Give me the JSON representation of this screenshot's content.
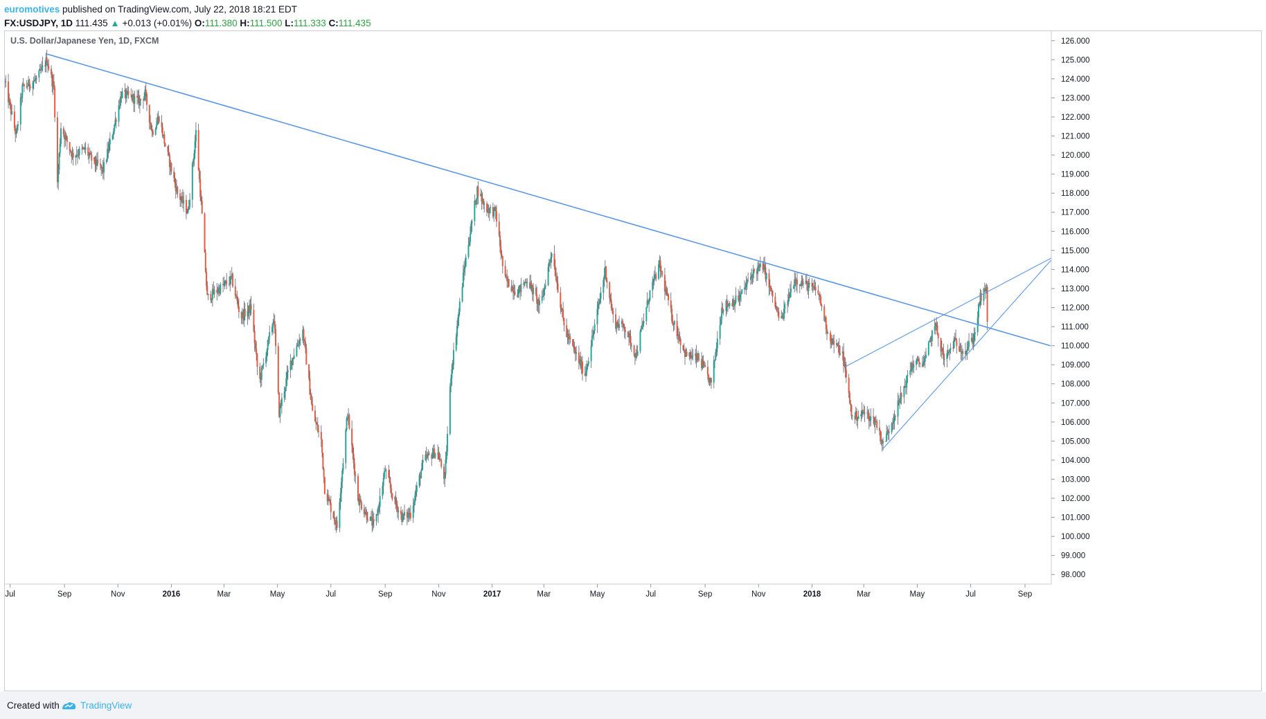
{
  "header": {
    "author": "euromotives",
    "published_text": "published on TradingView.com, July 22, 2018 18:21 EDT",
    "symbol": "FX:USDJPY, 1D",
    "price": "111.435",
    "change": "+0.013 (+0.01%)",
    "open_label": "O:",
    "open_value": "111.380",
    "high_label": "H:",
    "high_value": "111.500",
    "low_label": "L:",
    "low_value": "111.333",
    "close_label": "C:",
    "close_value": "111.435"
  },
  "chart_title": "U.S. Dollar/Japanese Yen, 1D, FXCM",
  "footer": {
    "created_with": "Created with",
    "brand": "TradingView"
  },
  "colors": {
    "up": "#26a69a",
    "down": "#e45c44",
    "trendline": "#5b97e3",
    "author": "#3bb3e4",
    "ohlc_value": "#2ea043"
  },
  "chart_data": {
    "type": "candlestick",
    "title": "U.S. Dollar/Japanese Yen, 1D, FXCM",
    "x_tick_labels": [
      "Jul",
      "Sep",
      "Nov",
      "2016",
      "Mar",
      "May",
      "Jul",
      "Sep",
      "Nov",
      "2017",
      "Mar",
      "May",
      "Jul",
      "Sep",
      "Nov",
      "2018",
      "Mar",
      "May",
      "Jul",
      "Sep"
    ],
    "x_tick_dates": [
      "2015-07-01",
      "2015-09-01",
      "2015-11-01",
      "2016-01-01",
      "2016-03-01",
      "2016-05-01",
      "2016-07-01",
      "2016-09-01",
      "2016-11-01",
      "2017-01-01",
      "2017-03-01",
      "2017-05-01",
      "2017-07-01",
      "2017-09-01",
      "2017-11-01",
      "2018-01-01",
      "2018-03-01",
      "2018-05-01",
      "2018-07-01",
      "2018-09-01"
    ],
    "y_tick_labels": [
      "126.000",
      "125.000",
      "124.000",
      "123.000",
      "122.000",
      "121.000",
      "120.000",
      "119.000",
      "118.000",
      "117.000",
      "116.000",
      "115.000",
      "114.000",
      "113.000",
      "112.000",
      "111.000",
      "110.000",
      "109.000",
      "108.000",
      "107.000",
      "106.000",
      "105.000",
      "104.000",
      "103.000",
      "102.000",
      "101.000",
      "100.000",
      "99.000",
      "98.000"
    ],
    "ylim": [
      97.5,
      126.5
    ],
    "xlim": [
      "2015-06-25",
      "2018-10-01"
    ],
    "grid": false,
    "series": [
      {
        "close_path": [
          [
            "2015-06-25",
            123.8
          ],
          [
            "2015-07-08",
            121.0
          ],
          [
            "2015-07-15",
            123.5
          ],
          [
            "2015-08-01",
            124.0
          ],
          [
            "2015-08-12",
            125.0
          ],
          [
            "2015-08-20",
            123.5
          ],
          [
            "2015-08-24",
            118.5
          ],
          [
            "2015-08-28",
            121.5
          ],
          [
            "2015-09-10",
            120.0
          ],
          [
            "2015-09-25",
            120.3
          ],
          [
            "2015-10-01",
            119.8
          ],
          [
            "2015-10-15",
            119.2
          ],
          [
            "2015-10-25",
            121.0
          ],
          [
            "2015-11-05",
            123.2
          ],
          [
            "2015-11-18",
            123.0
          ],
          [
            "2015-11-25",
            122.8
          ],
          [
            "2015-12-02",
            123.2
          ],
          [
            "2015-12-10",
            121.2
          ],
          [
            "2015-12-18",
            122.0
          ],
          [
            "2015-12-25",
            120.5
          ],
          [
            "2016-01-08",
            118.0
          ],
          [
            "2016-01-20",
            117.0
          ],
          [
            "2016-01-29",
            121.2
          ],
          [
            "2016-02-05",
            116.8
          ],
          [
            "2016-02-11",
            112.5
          ],
          [
            "2016-02-25",
            113.0
          ],
          [
            "2016-03-10",
            113.5
          ],
          [
            "2016-03-20",
            111.5
          ],
          [
            "2016-04-01",
            112.0
          ],
          [
            "2016-04-10",
            108.0
          ],
          [
            "2016-04-27",
            111.5
          ],
          [
            "2016-05-03",
            106.5
          ],
          [
            "2016-05-15",
            109.0
          ],
          [
            "2016-05-30",
            110.8
          ],
          [
            "2016-06-10",
            106.5
          ],
          [
            "2016-06-20",
            105.0
          ],
          [
            "2016-06-24",
            102.5
          ],
          [
            "2016-07-08",
            100.5
          ],
          [
            "2016-07-20",
            106.5
          ],
          [
            "2016-08-01",
            102.0
          ],
          [
            "2016-08-10",
            101.2
          ],
          [
            "2016-08-20",
            100.5
          ],
          [
            "2016-09-01",
            103.5
          ],
          [
            "2016-09-10",
            102.0
          ],
          [
            "2016-09-20",
            101.0
          ],
          [
            "2016-09-30",
            101.2
          ],
          [
            "2016-10-15",
            104.0
          ],
          [
            "2016-10-30",
            104.5
          ],
          [
            "2016-11-08",
            103.0
          ],
          [
            "2016-11-15",
            108.5
          ],
          [
            "2016-11-30",
            114.0
          ],
          [
            "2016-12-15",
            118.2
          ],
          [
            "2016-12-25",
            117.2
          ],
          [
            "2017-01-05",
            117.0
          ],
          [
            "2017-01-15",
            113.5
          ],
          [
            "2017-01-30",
            112.8
          ],
          [
            "2017-02-10",
            113.5
          ],
          [
            "2017-02-25",
            112.0
          ],
          [
            "2017-03-10",
            115.0
          ],
          [
            "2017-03-25",
            110.8
          ],
          [
            "2017-04-17",
            108.5
          ],
          [
            "2017-04-30",
            111.5
          ],
          [
            "2017-05-10",
            114.0
          ],
          [
            "2017-05-20",
            111.2
          ],
          [
            "2017-06-01",
            111.0
          ],
          [
            "2017-06-14",
            109.5
          ],
          [
            "2017-07-01",
            113.0
          ],
          [
            "2017-07-11",
            114.2
          ],
          [
            "2017-07-25",
            111.5
          ],
          [
            "2017-08-10",
            109.5
          ],
          [
            "2017-08-25",
            109.3
          ],
          [
            "2017-09-08",
            108.0
          ],
          [
            "2017-09-20",
            112.0
          ],
          [
            "2017-10-10",
            112.5
          ],
          [
            "2017-10-25",
            113.8
          ],
          [
            "2017-11-06",
            114.2
          ],
          [
            "2017-11-26",
            111.2
          ],
          [
            "2017-12-12",
            113.5
          ],
          [
            "2017-12-25",
            113.2
          ],
          [
            "2018-01-08",
            112.8
          ],
          [
            "2018-01-20",
            110.5
          ],
          [
            "2018-02-05",
            109.5
          ],
          [
            "2018-02-16",
            106.2
          ],
          [
            "2018-03-01",
            106.5
          ],
          [
            "2018-03-15",
            106.0
          ],
          [
            "2018-03-23",
            104.8
          ],
          [
            "2018-04-10",
            107.0
          ],
          [
            "2018-04-25",
            109.0
          ],
          [
            "2018-05-10",
            109.2
          ],
          [
            "2018-05-21",
            111.2
          ],
          [
            "2018-06-01",
            109.2
          ],
          [
            "2018-06-12",
            110.2
          ],
          [
            "2018-06-25",
            109.7
          ],
          [
            "2018-07-05",
            110.5
          ],
          [
            "2018-07-12",
            112.5
          ],
          [
            "2018-07-19",
            112.9
          ],
          [
            "2018-07-20",
            111.4
          ]
        ]
      }
    ],
    "trendlines": [
      {
        "from": [
          "2015-08-12",
          125.3
        ],
        "to": [
          "2018-09-30",
          110.0
        ]
      },
      {
        "from": [
          "2018-02-08",
          108.9
        ],
        "to": [
          "2018-10-01",
          114.6
        ]
      },
      {
        "from": [
          "2018-03-23",
          104.6
        ],
        "to": [
          "2018-10-01",
          114.5
        ]
      }
    ],
    "last_price": 111.435
  }
}
